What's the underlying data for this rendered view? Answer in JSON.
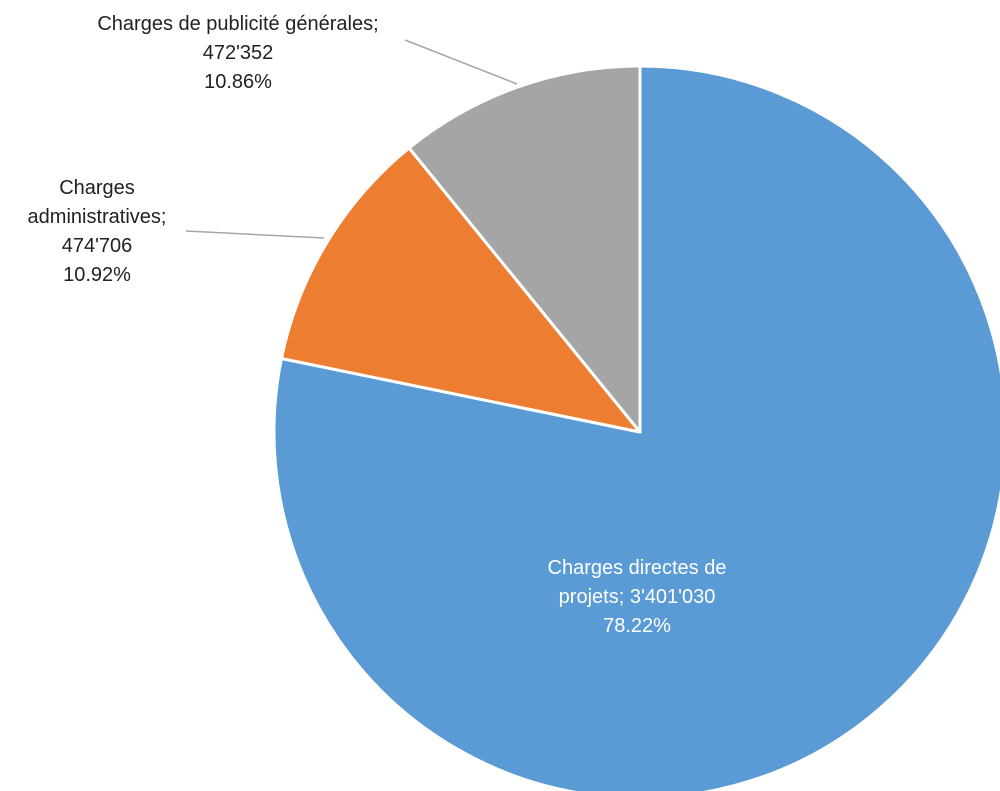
{
  "chart_data": {
    "type": "pie",
    "start_angle_deg": 0,
    "direction": "clockwise",
    "slices": [
      {
        "name": "Charges directes de projets",
        "value": 3401030,
        "value_label": "3'401'030",
        "percent_label": "78.22%",
        "label_lines": [
          "Charges directes de",
          "projets; 3'401'030",
          "78.22%"
        ],
        "color": "#5B9BD5",
        "label_color": "#FFFFFF",
        "label_inside": true
      },
      {
        "name": "Charges administratives",
        "value": 474706,
        "value_label": "474'706",
        "percent_label": "10.92%",
        "label_lines": [
          "Charges",
          "administratives;",
          "474'706",
          "10.92%"
        ],
        "color": "#ED7D31",
        "label_color": "#222222",
        "label_inside": false
      },
      {
        "name": "Charges de publicité générales",
        "value": 472352,
        "value_label": "472'352",
        "percent_label": "10.86%",
        "label_lines": [
          "Charges de publicité générales;",
          "472'352",
          "10.86%"
        ],
        "color": "#A5A5A5",
        "label_color": "#222222",
        "label_inside": false
      }
    ],
    "slice_border_color": "#FFFFFF",
    "leader_line_color": "#A6A6A6"
  }
}
